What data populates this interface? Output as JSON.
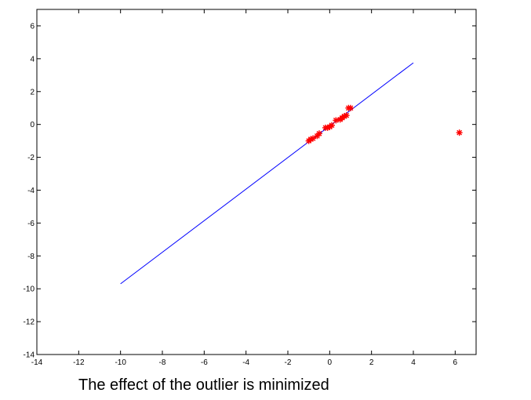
{
  "chart_data": {
    "type": "scatter",
    "title": "",
    "xlabel": "",
    "ylabel": "",
    "xlim": [
      -14,
      7
    ],
    "ylim": [
      -14,
      7
    ],
    "xticks": [
      -14,
      -12,
      -10,
      -8,
      -6,
      -4,
      -2,
      0,
      2,
      4,
      6
    ],
    "yticks": [
      -14,
      -12,
      -10,
      -8,
      -6,
      -4,
      -2,
      0,
      2,
      4,
      6
    ],
    "grid": false,
    "series": [
      {
        "type": "line",
        "color": "#0000ff",
        "x": [
          -10,
          4
        ],
        "y": [
          -9.7,
          3.75
        ]
      },
      {
        "type": "scatter",
        "marker": "asterisk",
        "color": "#ff0000",
        "x": [
          -1.0,
          -0.9,
          -0.8,
          -0.6,
          -0.5,
          -0.2,
          -0.1,
          0.0,
          0.1,
          0.3,
          0.5,
          0.6,
          0.7,
          0.8,
          0.9,
          1.0,
          6.2
        ],
        "y": [
          -1.0,
          -0.9,
          -0.85,
          -0.7,
          -0.55,
          -0.2,
          -0.2,
          -0.15,
          -0.05,
          0.25,
          0.3,
          0.4,
          0.5,
          0.55,
          1.0,
          1.0,
          -0.5
        ]
      }
    ]
  },
  "caption": "The effect of the outlier is minimized"
}
